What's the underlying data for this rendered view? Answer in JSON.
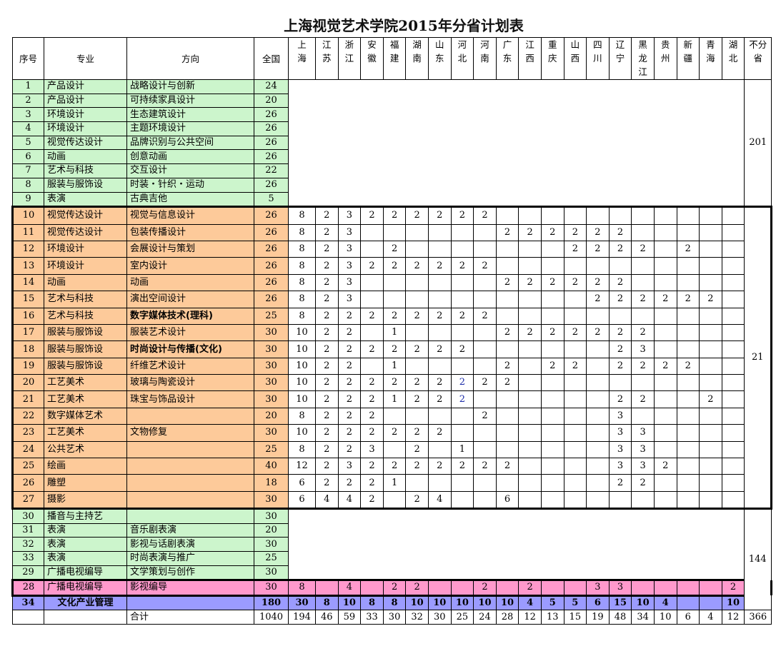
{
  "title": "上海视觉艺术学院2015年分省计划表",
  "headers": {
    "index": "序号",
    "major": "专业",
    "direction": "方向",
    "national": "全国",
    "provinces": [
      "上\n海",
      "江\n苏",
      "浙\n江",
      "安\n徽",
      "福\n建",
      "湖\n南",
      "山\n东",
      "河\n北",
      "河\n南",
      "广\n东",
      "江\n西",
      "重\n庆",
      "山\n西",
      "四\n川",
      "辽\n宁",
      "黑\n龙\n江",
      "贵\n州",
      "新\n疆",
      "青\n海",
      "湖\n北"
    ],
    "unassigned": "不分\n省"
  },
  "colors": {
    "green": "#ccf5cc",
    "orange": "#fdca9a",
    "pink": "#ff99cc",
    "purple": "#9b9bff"
  },
  "group1": {
    "unassigned": "201",
    "rows": [
      {
        "no": "1",
        "major": "产品设计",
        "direction": "战略设计与创新",
        "national": "24"
      },
      {
        "no": "2",
        "major": "产品设计",
        "direction": "可持续家具设计",
        "national": "20"
      },
      {
        "no": "3",
        "major": "环境设计",
        "direction": "生态建筑设计",
        "national": "26"
      },
      {
        "no": "4",
        "major": "环境设计",
        "direction": "主题环境设计",
        "national": "26"
      },
      {
        "no": "5",
        "major": "视觉传达设计",
        "direction": "品牌识别与公共空间",
        "national": "26"
      },
      {
        "no": "6",
        "major": "动画",
        "direction": "创意动画",
        "national": "26"
      },
      {
        "no": "7",
        "major": "艺术与科技",
        "direction": "交互设计",
        "national": "22"
      },
      {
        "no": "8",
        "major": "服装与服饰设",
        "direction": "时装・针织・运动",
        "national": "26"
      },
      {
        "no": "9",
        "major": "表演",
        "direction": "古典吉他",
        "national": "5"
      }
    ]
  },
  "group2": {
    "unassigned": "21",
    "rows": [
      {
        "no": "10",
        "major": "视觉传达设计",
        "direction": "视觉与信息设计",
        "national": "26",
        "p": [
          "8",
          "2",
          "3",
          "2",
          "2",
          "2",
          "2",
          "2",
          "2",
          "",
          "",
          "",
          "",
          "",
          "",
          "",
          "",
          "",
          "",
          ""
        ]
      },
      {
        "no": "11",
        "major": "视觉传达设计",
        "direction": "包装传播设计",
        "national": "26",
        "p": [
          "8",
          "2",
          "3",
          "",
          "",
          "",
          "",
          "",
          "",
          "2",
          "2",
          "2",
          "2",
          "2",
          "2",
          "",
          "",
          "",
          "",
          ""
        ]
      },
      {
        "no": "12",
        "major": "环境设计",
        "direction": "会展设计与策划",
        "national": "26",
        "p": [
          "8",
          "2",
          "3",
          "",
          "2",
          "",
          "",
          "",
          "",
          "",
          "",
          "",
          "2",
          "2",
          "2",
          "2",
          "",
          "2",
          "",
          ""
        ]
      },
      {
        "no": "13",
        "major": "环境设计",
        "direction": "室内设计",
        "national": "26",
        "p": [
          "8",
          "2",
          "3",
          "2",
          "2",
          "2",
          "2",
          "2",
          "2",
          "",
          "",
          "",
          "",
          "",
          "",
          "",
          "",
          "",
          "",
          ""
        ]
      },
      {
        "no": "14",
        "major": "动画",
        "direction": "动画",
        "national": "26",
        "p": [
          "8",
          "2",
          "3",
          "",
          "",
          "",
          "",
          "",
          "",
          "2",
          "2",
          "2",
          "2",
          "2",
          "2",
          "",
          "",
          "",
          "",
          ""
        ]
      },
      {
        "no": "15",
        "major": "艺术与科技",
        "direction": "演出空间设计",
        "national": "26",
        "p": [
          "8",
          "2",
          "3",
          "",
          "",
          "",
          "",
          "",
          "",
          "",
          "",
          "",
          "",
          "2",
          "2",
          "2",
          "2",
          "2",
          "2",
          ""
        ]
      },
      {
        "no": "16",
        "major": "艺术与科技",
        "direction": "数字媒体技术(理科)",
        "national": "25",
        "bold": true,
        "p": [
          "8",
          "2",
          "2",
          "2",
          "2",
          "2",
          "2",
          "2",
          "2",
          "",
          "",
          "",
          "",
          "",
          "",
          "",
          "",
          "",
          "",
          ""
        ]
      },
      {
        "no": "17",
        "major": "服装与服饰设",
        "direction": "服装艺术设计",
        "national": "30",
        "p": [
          "10",
          "2",
          "2",
          "",
          "1",
          "",
          "",
          "",
          "",
          "2",
          "2",
          "2",
          "2",
          "2",
          "2",
          "2",
          "",
          "",
          "",
          ""
        ]
      },
      {
        "no": "18",
        "major": "服装与服饰设",
        "direction": "时尚设计与传播(文化)",
        "national": "30",
        "bold": true,
        "p": [
          "10",
          "2",
          "2",
          "2",
          "2",
          "2",
          "2",
          "2",
          "",
          "",
          "",
          "",
          "",
          "",
          "2",
          "3",
          "",
          "",
          "",
          ""
        ]
      },
      {
        "no": "19",
        "major": "服装与服饰设",
        "direction": "纤维艺术设计",
        "national": "30",
        "p": [
          "10",
          "2",
          "2",
          "",
          "1",
          "",
          "",
          "",
          "",
          "2",
          "",
          "2",
          "2",
          "",
          "2",
          "2",
          "2",
          "2",
          "",
          ""
        ]
      },
      {
        "no": "20",
        "major": "工艺美术",
        "direction": "玻璃与陶瓷设计",
        "national": "30",
        "p": [
          "10",
          "2",
          "2",
          "2",
          "2",
          "2",
          "2",
          "2",
          "2",
          "2",
          "",
          "",
          "",
          "",
          "",
          "",
          "",
          "",
          "",
          ""
        ]
      },
      {
        "no": "21",
        "major": "工艺美术",
        "direction": "珠宝与饰品设计",
        "national": "30",
        "p": [
          "10",
          "2",
          "2",
          "2",
          "1",
          "2",
          "2",
          "2",
          "",
          "",
          "",
          "",
          "",
          "",
          "2",
          "2",
          "",
          "",
          "2",
          ""
        ]
      },
      {
        "no": "22",
        "major": "数字媒体艺术",
        "direction": "",
        "national": "20",
        "p": [
          "8",
          "2",
          "2",
          "2",
          "",
          "",
          "",
          "",
          "2",
          "",
          "",
          "",
          "",
          "",
          "3",
          "",
          "",
          "",
          "",
          ""
        ]
      },
      {
        "no": "23",
        "major": "工艺美术",
        "direction": "文物修复",
        "national": "30",
        "p": [
          "10",
          "2",
          "2",
          "2",
          "2",
          "2",
          "2",
          "",
          "",
          "",
          "",
          "",
          "",
          "",
          "3",
          "3",
          "",
          "",
          "",
          ""
        ]
      },
      {
        "no": "24",
        "major": "公共艺术",
        "direction": "",
        "national": "25",
        "p": [
          "8",
          "2",
          "2",
          "3",
          "",
          "2",
          "",
          "1",
          "",
          "",
          "",
          "",
          "",
          "",
          "3",
          "3",
          "",
          "",
          "",
          ""
        ]
      },
      {
        "no": "25",
        "major": "绘画",
        "direction": "",
        "national": "40",
        "p": [
          "12",
          "2",
          "3",
          "2",
          "2",
          "2",
          "2",
          "2",
          "2",
          "2",
          "",
          "",
          "",
          "",
          "3",
          "3",
          "2",
          "",
          "",
          ""
        ]
      },
      {
        "no": "26",
        "major": "雕塑",
        "direction": "",
        "national": "18",
        "p": [
          "6",
          "2",
          "2",
          "2",
          "1",
          "",
          "",
          "",
          "",
          "",
          "",
          "",
          "",
          "",
          "2",
          "2",
          "",
          "",
          "",
          ""
        ]
      },
      {
        "no": "27",
        "major": "摄影",
        "direction": "",
        "national": "30",
        "p": [
          "6",
          "4",
          "4",
          "2",
          "",
          "2",
          "4",
          "",
          "",
          "6",
          "",
          "",
          "",
          "",
          "",
          "",
          "",
          "",
          "",
          ""
        ]
      }
    ]
  },
  "group3": {
    "unassigned": "144",
    "rows": [
      {
        "no": "30",
        "major": "播音与主持艺",
        "direction": "",
        "national": "30"
      },
      {
        "no": "31",
        "major": "表演",
        "direction": "音乐剧表演",
        "national": "20"
      },
      {
        "no": "32",
        "major": "表演",
        "direction": "影视与话剧表演",
        "national": "30"
      },
      {
        "no": "33",
        "major": "表演",
        "direction": "时尚表演与推广",
        "national": "25"
      },
      {
        "no": "29",
        "major": "广播电视编导",
        "direction": "文学策划与创作",
        "national": "30"
      }
    ]
  },
  "row28": {
    "no": "28",
    "major": "广播电视编导",
    "direction": "影视编导",
    "national": "30",
    "p": [
      "8",
      "",
      "4",
      "",
      "2",
      "2",
      "",
      "",
      "2",
      "",
      "2",
      "",
      "",
      "3",
      "3",
      "",
      "",
      "",
      "",
      "2"
    ]
  },
  "row34": {
    "no": "34",
    "major": "文化产业管理",
    "direction": "",
    "national": "180",
    "p": [
      "30",
      "8",
      "10",
      "8",
      "8",
      "10",
      "10",
      "10",
      "10",
      "10",
      "4",
      "5",
      "5",
      "6",
      "15",
      "10",
      "4",
      "",
      "",
      "10"
    ]
  },
  "totals": {
    "label": "合计",
    "national": "1040",
    "p": [
      "194",
      "46",
      "59",
      "33",
      "30",
      "32",
      "30",
      "25",
      "24",
      "28",
      "12",
      "13",
      "15",
      "19",
      "48",
      "34",
      "10",
      "6",
      "4",
      "12"
    ],
    "unassigned": "366"
  }
}
